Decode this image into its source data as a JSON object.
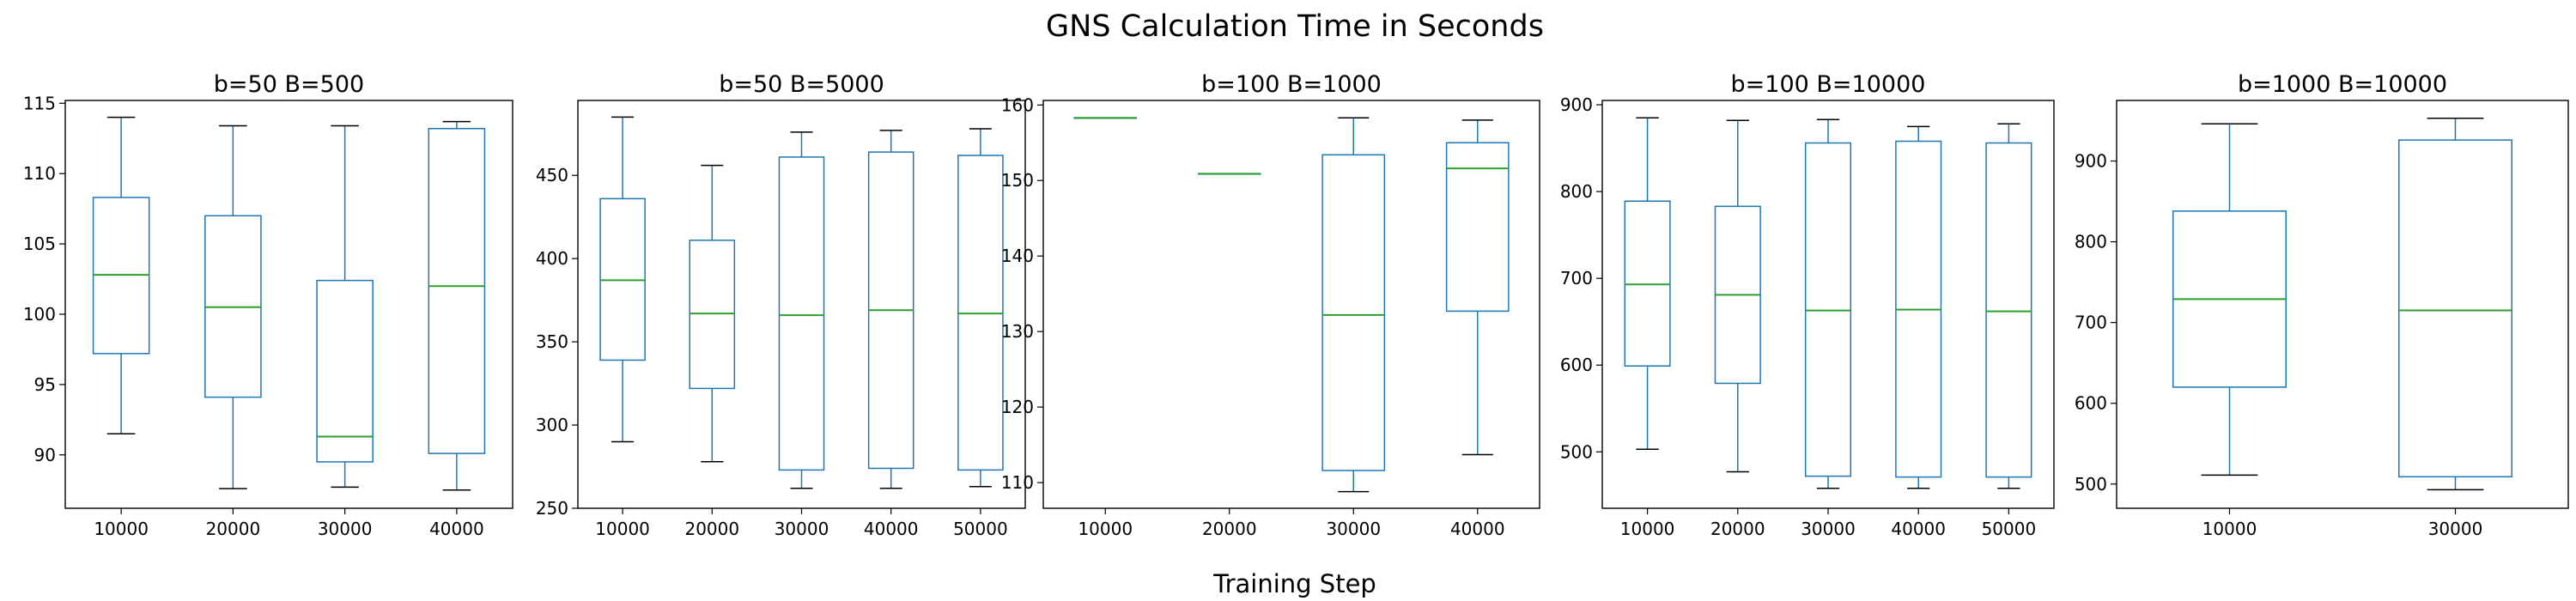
{
  "figure": {
    "title": "GNS Calculation Time in Seconds",
    "xlabel": "Training Step"
  },
  "colors": {
    "box": "#1f77b4",
    "median": "#2ca02c",
    "caps": "#000000"
  },
  "chart_data": [
    {
      "type": "box",
      "title": "b=50  B=500",
      "categories": [
        "10000",
        "20000",
        "30000",
        "40000"
      ],
      "ylim": [
        86.2,
        115.2
      ],
      "yticks": [
        90,
        95,
        100,
        105,
        110,
        115
      ],
      "boxes": [
        {
          "min": 91.5,
          "q1": 97.2,
          "median": 102.8,
          "q3": 108.3,
          "max": 114.0
        },
        {
          "min": 87.6,
          "q1": 94.1,
          "median": 100.5,
          "q3": 107.0,
          "max": 113.4
        },
        {
          "min": 87.7,
          "q1": 89.5,
          "median": 91.3,
          "q3": 102.4,
          "max": 113.4
        },
        {
          "min": 87.5,
          "q1": 90.1,
          "median": 102.0,
          "q3": 113.2,
          "max": 113.7
        }
      ]
    },
    {
      "type": "box",
      "title": "b=50  B=5000",
      "categories": [
        "10000",
        "20000",
        "30000",
        "40000",
        "50000"
      ],
      "ylim": [
        250,
        495
      ],
      "yticks": [
        250,
        300,
        350,
        400,
        450
      ],
      "boxes": [
        {
          "min": 290,
          "q1": 339,
          "median": 387,
          "q3": 436,
          "max": 485
        },
        {
          "min": 278,
          "q1": 322,
          "median": 367,
          "q3": 411,
          "max": 456
        },
        {
          "min": 262,
          "q1": 273,
          "median": 366,
          "q3": 461,
          "max": 476
        },
        {
          "min": 262,
          "q1": 274,
          "median": 369,
          "q3": 464,
          "max": 477
        },
        {
          "min": 263,
          "q1": 273,
          "median": 367,
          "q3": 462,
          "max": 478
        }
      ]
    },
    {
      "type": "box",
      "title": "b=100  B=1000",
      "categories": [
        "10000",
        "20000",
        "30000",
        "40000"
      ],
      "ylim": [
        106.6,
        160.6
      ],
      "yticks": [
        110,
        120,
        130,
        140,
        150,
        160
      ],
      "boxes": [
        {
          "min": 158.3,
          "q1": 158.3,
          "median": 158.3,
          "q3": 158.3,
          "max": 158.3
        },
        {
          "min": 150.9,
          "q1": 150.9,
          "median": 150.9,
          "q3": 150.9,
          "max": 150.9
        },
        {
          "min": 108.8,
          "q1": 111.6,
          "median": 132.2,
          "q3": 153.4,
          "max": 158.3
        },
        {
          "min": 113.7,
          "q1": 132.7,
          "median": 151.6,
          "q3": 155.0,
          "max": 158.0
        }
      ]
    },
    {
      "type": "box",
      "title": "b=100  B=10000",
      "categories": [
        "10000",
        "20000",
        "30000",
        "40000",
        "50000"
      ],
      "ylim": [
        435,
        905
      ],
      "yticks": [
        500,
        600,
        700,
        800,
        900
      ],
      "boxes": [
        {
          "min": 503,
          "q1": 599,
          "median": 693,
          "q3": 789,
          "max": 885
        },
        {
          "min": 477,
          "q1": 579,
          "median": 681,
          "q3": 783,
          "max": 882
        },
        {
          "min": 458,
          "q1": 472,
          "median": 663,
          "q3": 856,
          "max": 883
        },
        {
          "min": 458,
          "q1": 471,
          "median": 664,
          "q3": 858,
          "max": 875
        },
        {
          "min": 458,
          "q1": 471,
          "median": 662,
          "q3": 856,
          "max": 878
        }
      ]
    },
    {
      "type": "box",
      "title": "b=1000  B=10000",
      "categories": [
        "10000",
        "30000"
      ],
      "ylim": [
        470,
        975
      ],
      "yticks": [
        500,
        600,
        700,
        800,
        900
      ],
      "boxes": [
        {
          "min": 511,
          "q1": 620,
          "median": 729,
          "q3": 838,
          "max": 946
        },
        {
          "min": 493,
          "q1": 509,
          "median": 715,
          "q3": 926,
          "max": 953
        }
      ]
    }
  ]
}
